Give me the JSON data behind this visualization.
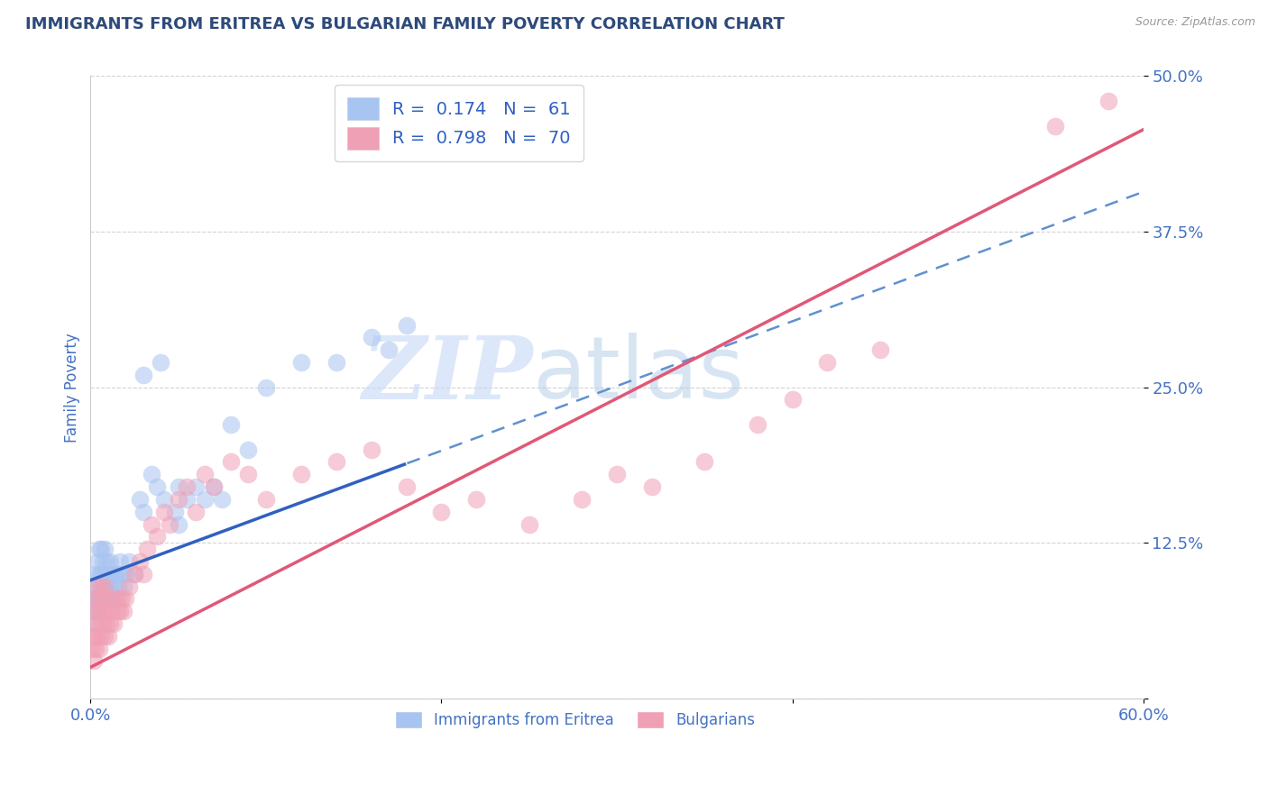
{
  "title": "IMMIGRANTS FROM ERITREA VS BULGARIAN FAMILY POVERTY CORRELATION CHART",
  "source": "Source: ZipAtlas.com",
  "ylabel": "Family Poverty",
  "xlim": [
    0.0,
    0.6
  ],
  "ylim": [
    0.0,
    0.5
  ],
  "xticks": [
    0.0,
    0.2,
    0.4,
    0.6
  ],
  "xticklabels": [
    "0.0%",
    "",
    "",
    "60.0%"
  ],
  "yticks": [
    0.0,
    0.125,
    0.25,
    0.375,
    0.5
  ],
  "yticklabels": [
    "",
    "12.5%",
    "25.0%",
    "37.5%",
    "50.0%"
  ],
  "legend_items": [
    {
      "label": "R =  0.174   N =  61",
      "color": "#a8c4f0"
    },
    {
      "label": "R =  0.798   N =  70",
      "color": "#f0a8b8"
    }
  ],
  "blue_scatter_x": [
    0.001,
    0.002,
    0.002,
    0.003,
    0.003,
    0.003,
    0.004,
    0.004,
    0.004,
    0.005,
    0.005,
    0.005,
    0.006,
    0.006,
    0.006,
    0.007,
    0.007,
    0.008,
    0.008,
    0.008,
    0.009,
    0.009,
    0.01,
    0.01,
    0.011,
    0.011,
    0.012,
    0.012,
    0.013,
    0.014,
    0.015,
    0.016,
    0.017,
    0.018,
    0.019,
    0.02,
    0.022,
    0.025,
    0.028,
    0.03,
    0.035,
    0.038,
    0.042,
    0.048,
    0.05,
    0.055,
    0.06,
    0.065,
    0.07,
    0.075,
    0.08,
    0.09,
    0.1,
    0.12,
    0.14,
    0.16,
    0.17,
    0.18,
    0.03,
    0.04,
    0.05
  ],
  "blue_scatter_y": [
    0.08,
    0.07,
    0.09,
    0.06,
    0.08,
    0.1,
    0.07,
    0.09,
    0.11,
    0.08,
    0.1,
    0.12,
    0.08,
    0.1,
    0.12,
    0.09,
    0.11,
    0.08,
    0.1,
    0.12,
    0.09,
    0.11,
    0.08,
    0.1,
    0.09,
    0.11,
    0.08,
    0.1,
    0.09,
    0.1,
    0.1,
    0.09,
    0.11,
    0.1,
    0.09,
    0.1,
    0.11,
    0.1,
    0.16,
    0.15,
    0.18,
    0.17,
    0.16,
    0.15,
    0.17,
    0.16,
    0.17,
    0.16,
    0.17,
    0.16,
    0.22,
    0.2,
    0.25,
    0.27,
    0.27,
    0.29,
    0.28,
    0.3,
    0.26,
    0.27,
    0.14
  ],
  "pink_scatter_x": [
    0.001,
    0.001,
    0.002,
    0.002,
    0.002,
    0.003,
    0.003,
    0.003,
    0.004,
    0.004,
    0.004,
    0.005,
    0.005,
    0.005,
    0.006,
    0.006,
    0.006,
    0.007,
    0.007,
    0.008,
    0.008,
    0.008,
    0.009,
    0.009,
    0.01,
    0.01,
    0.011,
    0.012,
    0.013,
    0.014,
    0.015,
    0.016,
    0.017,
    0.018,
    0.019,
    0.02,
    0.022,
    0.025,
    0.028,
    0.03,
    0.032,
    0.035,
    0.038,
    0.042,
    0.045,
    0.05,
    0.055,
    0.06,
    0.065,
    0.07,
    0.08,
    0.09,
    0.1,
    0.12,
    0.14,
    0.16,
    0.18,
    0.2,
    0.22,
    0.25,
    0.28,
    0.3,
    0.32,
    0.35,
    0.38,
    0.4,
    0.42,
    0.45,
    0.55,
    0.58
  ],
  "pink_scatter_y": [
    0.04,
    0.05,
    0.03,
    0.05,
    0.07,
    0.04,
    0.06,
    0.08,
    0.05,
    0.07,
    0.09,
    0.04,
    0.06,
    0.08,
    0.05,
    0.07,
    0.09,
    0.06,
    0.08,
    0.05,
    0.07,
    0.09,
    0.06,
    0.08,
    0.05,
    0.07,
    0.06,
    0.07,
    0.06,
    0.08,
    0.07,
    0.08,
    0.07,
    0.08,
    0.07,
    0.08,
    0.09,
    0.1,
    0.11,
    0.1,
    0.12,
    0.14,
    0.13,
    0.15,
    0.14,
    0.16,
    0.17,
    0.15,
    0.18,
    0.17,
    0.19,
    0.18,
    0.16,
    0.18,
    0.19,
    0.2,
    0.17,
    0.15,
    0.16,
    0.14,
    0.16,
    0.18,
    0.17,
    0.19,
    0.22,
    0.24,
    0.27,
    0.28,
    0.46,
    0.48
  ],
  "blue_line": {
    "slope": 0.52,
    "intercept": 0.095
  },
  "pink_line": {
    "slope": 0.72,
    "intercept": 0.025
  },
  "watermark_text": "ZIP",
  "watermark_text2": "atlas",
  "background_color": "#ffffff",
  "grid_color": "#c8c8c8",
  "title_color": "#2d4a7a",
  "tick_label_color": "#4472c4",
  "title_fontsize": 13,
  "source_text": "Source: ZipAtlas.com"
}
